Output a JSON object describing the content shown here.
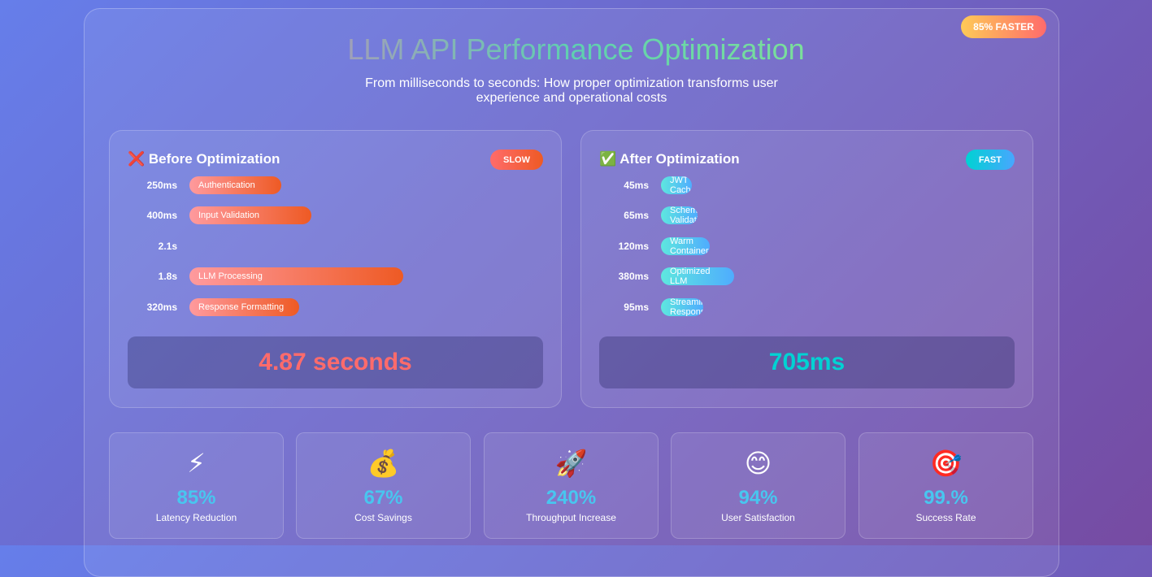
{
  "badge": "85% FASTER",
  "header": {
    "title": "LLM API Performance Optimization",
    "subtitle": "From milliseconds to seconds: How proper optimization transforms user experience and operational costs"
  },
  "panels": [
    {
      "title": "❌ Before Optimization",
      "tag": "SLOW",
      "rows": [
        {
          "time": "250ms",
          "label": "Authentication"
        },
        {
          "time": "400ms",
          "label": "Input Validation"
        },
        {
          "time": "2.1s"
        },
        {
          "time": "1.8s",
          "label": "LLM Processing"
        },
        {
          "time": "320ms",
          "label": "Response Formatting"
        }
      ],
      "total": "4.87 seconds"
    },
    {
      "title": "✅ After Optimization",
      "tag": "FAST",
      "rows": [
        {
          "time": "45ms",
          "label": "JWT Cache"
        },
        {
          "time": "65ms",
          "label": "Schema Validation"
        },
        {
          "time": "120ms",
          "label": "Warm Container"
        },
        {
          "time": "380ms",
          "label": "Optimized LLM"
        },
        {
          "time": "95ms",
          "label": "Streaming Response"
        }
      ],
      "total": "705ms"
    }
  ],
  "metrics": [
    {
      "icon": "⚡",
      "value": "85%",
      "label": "Latency Reduction"
    },
    {
      "icon": "💰",
      "value": "67%",
      "label": "Cost Savings"
    },
    {
      "icon": "🚀",
      "value": "240%",
      "label": "Throughput Increase"
    },
    {
      "icon": "😊",
      "value": "94%",
      "label": "User Satisfaction"
    },
    {
      "icon": "🎯",
      "value": "99.%",
      "label": "Success Rate"
    }
  ]
}
